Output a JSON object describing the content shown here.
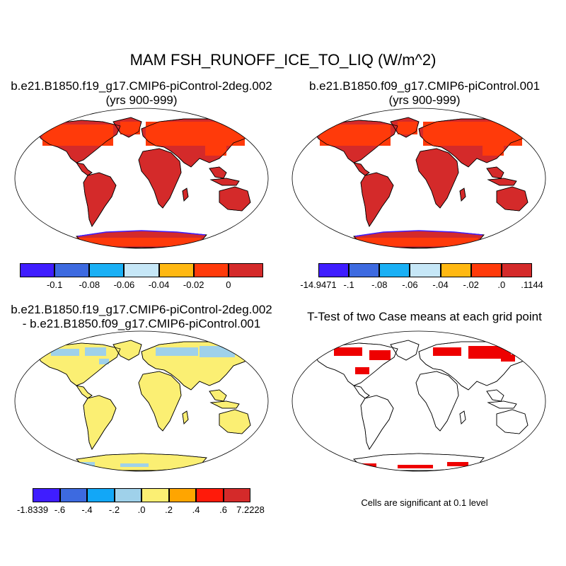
{
  "title": "MAM FSH_RUNOFF_ICE_TO_LIQ (W/m^2)",
  "panels": [
    {
      "title_line1": "b.e21.B1850.f19_g17.CMIP6-piControl-2deg.002",
      "title_line2": "(yrs 900-999)",
      "colorbar": {
        "colors": [
          "#3f1dff",
          "#3d6ae0",
          "#1ab0f5",
          "#c6e7f7",
          "#ffb812",
          "#ff3a0a",
          "#d42a2a"
        ],
        "labels": [
          "-0.1",
          "-0.08",
          "-0.06",
          "-0.04",
          "-0.02",
          "0"
        ]
      }
    },
    {
      "title_line1": "b.e21.B1850.f09_g17.CMIP6-piControl.001",
      "title_line2": "(yrs 900-999)",
      "colorbar": {
        "colors": [
          "#3f1dff",
          "#3d6ae0",
          "#1ab0f5",
          "#c6e7f7",
          "#ffb812",
          "#ff3a0a",
          "#d42a2a"
        ],
        "labels": [
          "-14.9471",
          "-.1",
          "-.08",
          "-.06",
          "-.04",
          "-.02",
          ".0",
          ".1144"
        ]
      }
    },
    {
      "title_line1": "b.e21.B1850.f19_g17.CMIP6-piControl-2deg.002",
      "title_line2": "- b.e21.B1850.f09_g17.CMIP6-piControl.001",
      "colorbar": {
        "colors": [
          "#3f1dff",
          "#3d6ae0",
          "#12a7f7",
          "#9fd1ea",
          "#fbef73",
          "#ffa500",
          "#ff1a0a",
          "#d42a2a"
        ],
        "labels": [
          "-1.8339",
          "-.6",
          "-.4",
          "-.2",
          ".0",
          ".2",
          ".4",
          ".6",
          "7.2228"
        ]
      }
    },
    {
      "title_line1": "T-Test of two Case means at each grid point",
      "note": "Cells are significant at 0.1 level"
    }
  ],
  "fill_colors": {
    "land_dark_red": "#d42a2a",
    "land_orange_red": "#ff3a0a",
    "land_yellow": "#fbef73",
    "land_light_blue": "#9fd1ea",
    "sig_red": "#ee0000",
    "coast_line": "#000000"
  }
}
